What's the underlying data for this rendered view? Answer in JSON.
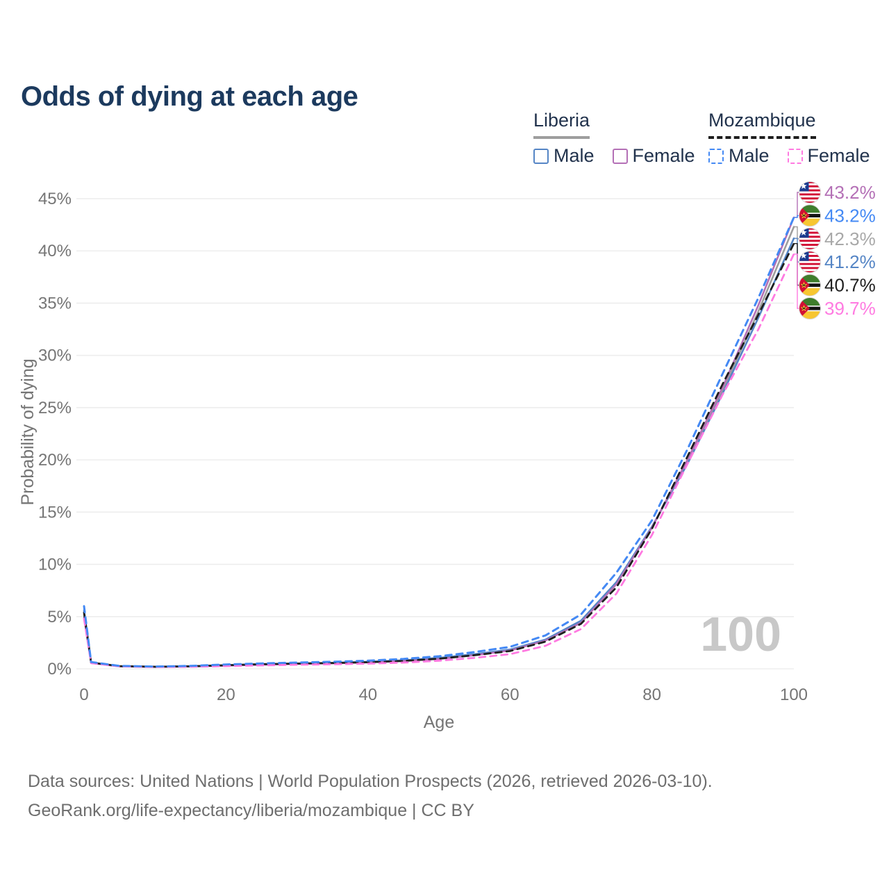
{
  "page": {
    "title": "Odds of dying at each age"
  },
  "legend": {
    "groups": [
      {
        "label": "Liberia",
        "line_style": "solid",
        "line_color": "#9e9e9e",
        "items": [
          {
            "label": "Male",
            "color": "#5585c5",
            "dashed": false
          },
          {
            "label": "Female",
            "color": "#b470b6",
            "dashed": false
          }
        ]
      },
      {
        "label": "Mozambique",
        "line_style": "dashed",
        "line_color": "#1f1f1f",
        "items": [
          {
            "label": "Male",
            "color": "#4489f4",
            "dashed": true
          },
          {
            "label": "Female",
            "color": "#ff7ae1",
            "dashed": true
          }
        ]
      }
    ]
  },
  "chart_data": {
    "type": "line",
    "title": "Odds of dying at each age",
    "xlabel": "Age",
    "ylabel": "Probability of dying",
    "xlim": [
      0,
      100
    ],
    "ylim": [
      0,
      45
    ],
    "grid": "horizontal",
    "x_tick_values": [
      0,
      20,
      40,
      60,
      80,
      100
    ],
    "x_tick_labels": [
      "0",
      "20",
      "40",
      "60",
      "80",
      "100"
    ],
    "y_tick_values": [
      0,
      5,
      10,
      15,
      20,
      25,
      30,
      35,
      40,
      45
    ],
    "y_tick_labels": [
      "0%",
      "5%",
      "10%",
      "15%",
      "20%",
      "25%",
      "30%",
      "35%",
      "40%",
      "45%"
    ],
    "hovered_age": "100",
    "x": [
      0,
      1,
      5,
      10,
      15,
      20,
      25,
      30,
      35,
      40,
      45,
      50,
      55,
      60,
      65,
      70,
      75,
      80,
      85,
      90,
      95,
      100
    ],
    "series": [
      {
        "name": "Liberia",
        "country": "liberia",
        "sex": "both",
        "color": "#9e9e9e",
        "dashed": false,
        "width": 2.6,
        "values": [
          5.25,
          0.58,
          0.24,
          0.19,
          0.23,
          0.33,
          0.43,
          0.5,
          0.56,
          0.65,
          0.79,
          1.0,
          1.35,
          1.8,
          2.75,
          4.5,
          8.2,
          13.55,
          19.8,
          26.7,
          34.2,
          42.3
        ],
        "end_label": "42.3%",
        "end_label_color": "#a8a8a8",
        "label_order": 2
      },
      {
        "name": "Liberia Male",
        "country": "liberia",
        "sex": "male",
        "color": "#5585c5",
        "dashed": false,
        "width": 2.6,
        "values": [
          5.6,
          0.6,
          0.25,
          0.2,
          0.25,
          0.35,
          0.45,
          0.52,
          0.58,
          0.68,
          0.82,
          1.05,
          1.4,
          1.85,
          2.8,
          4.6,
          8.3,
          13.6,
          19.6,
          26.4,
          33.6,
          41.2
        ],
        "end_label": "41.2%",
        "end_label_color": "#5585c5",
        "label_order": 3
      },
      {
        "name": "Liberia Female",
        "country": "liberia",
        "sex": "female",
        "color": "#b470b6",
        "dashed": false,
        "width": 2.6,
        "values": [
          4.9,
          0.55,
          0.23,
          0.18,
          0.22,
          0.3,
          0.4,
          0.47,
          0.53,
          0.62,
          0.75,
          0.95,
          1.3,
          1.75,
          2.7,
          4.4,
          8.1,
          13.5,
          20.0,
          27.0,
          34.8,
          43.2
        ],
        "end_label": "43.2%",
        "end_label_color": "#b470b6",
        "label_order": 0
      },
      {
        "name": "Mozambique",
        "country": "mozambique",
        "sex": "both",
        "color": "#1f1f1f",
        "dashed": true,
        "width": 2.8,
        "values": [
          5.4,
          0.6,
          0.26,
          0.2,
          0.24,
          0.34,
          0.44,
          0.5,
          0.55,
          0.63,
          0.76,
          0.97,
          1.3,
          1.7,
          2.6,
          4.3,
          7.8,
          13.4,
          20.3,
          27.3,
          33.9,
          40.7
        ],
        "end_label": "40.7%",
        "end_label_color": "#1f1f1f",
        "label_order": 4
      },
      {
        "name": "Mozambique Female",
        "country": "mozambique",
        "sex": "female",
        "color": "#ff7ae1",
        "dashed": true,
        "width": 2.8,
        "values": [
          4.8,
          0.55,
          0.23,
          0.17,
          0.2,
          0.26,
          0.33,
          0.39,
          0.44,
          0.5,
          0.6,
          0.78,
          1.05,
          1.4,
          2.2,
          3.8,
          7.2,
          12.8,
          19.6,
          26.3,
          32.5,
          39.7
        ],
        "end_label": "39.7%",
        "end_label_color": "#ff7ae1",
        "label_order": 5
      },
      {
        "name": "Mozambique Male",
        "country": "mozambique",
        "sex": "male",
        "color": "#4489f4",
        "dashed": true,
        "width": 3.0,
        "values": [
          6.0,
          0.65,
          0.28,
          0.22,
          0.28,
          0.42,
          0.52,
          0.6,
          0.68,
          0.78,
          0.95,
          1.2,
          1.6,
          2.1,
          3.2,
          5.2,
          9.2,
          14.2,
          21.0,
          28.3,
          35.5,
          43.2
        ],
        "end_label": "43.2%",
        "end_label_color": "#4489f4",
        "label_order": 1
      }
    ]
  },
  "footer": {
    "line1": "Data sources: United Nations | World Population Prospects (2026, retrieved 2026-03-10).",
    "line2": "GeoRank.org/life-expectancy/liberia/mozambique | CC BY"
  }
}
